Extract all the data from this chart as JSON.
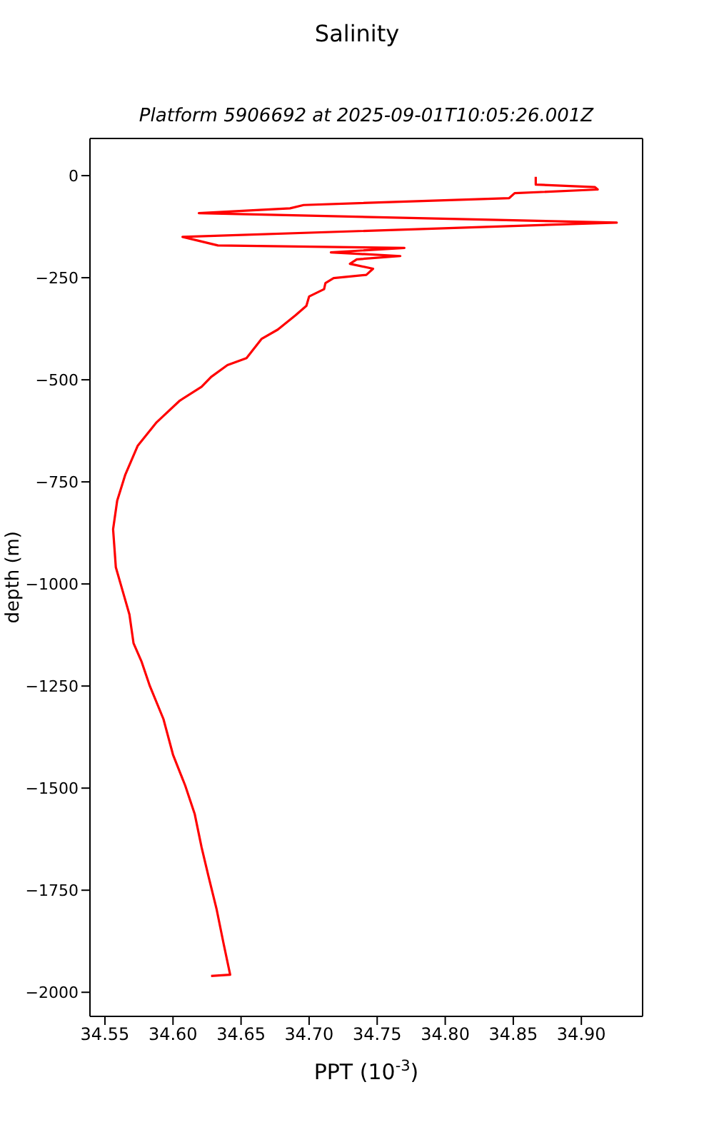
{
  "chart_data": {
    "type": "line",
    "title": "Salinity",
    "subtitle": "Platform 5906692 at 2025-09-01T10:05:26.001Z",
    "xlabel": "PPT (10$^{-3}$)",
    "ylabel": "depth (m)",
    "xlim": [
      34.539,
      34.945
    ],
    "xticks": [
      34.55,
      {
        "value": 34.6,
        "label": "34.60"
      },
      34.65,
      {
        "value": 34.7,
        "label": "34.70"
      },
      34.75,
      {
        "value": 34.8,
        "label": "34.80"
      },
      34.85,
      {
        "value": 34.9,
        "label": "34.90"
      }
    ],
    "ylim": [
      -2059,
      91
    ],
    "yticks": [
      -2000,
      -1750,
      -1500,
      -1250,
      -1000,
      -750,
      -500,
      -250,
      0
    ],
    "legend": false,
    "marker": "none",
    "line_style": "solid",
    "series": [
      {
        "color": "#ff0000",
        "x": [
          34.8665,
          34.8665,
          34.91,
          34.912,
          34.851,
          34.847,
          34.696,
          34.686,
          34.619,
          34.926,
          34.607,
          34.633,
          34.77,
          34.716,
          34.767,
          34.735,
          34.73,
          34.747,
          34.742,
          34.718,
          34.712,
          34.711,
          34.7,
          34.698,
          34.69,
          34.677,
          34.665,
          34.654,
          34.64,
          34.628,
          34.621,
          34.605,
          34.588,
          34.574,
          34.565,
          34.559,
          34.556,
          34.558,
          34.563,
          34.568,
          34.571,
          34.577,
          34.583,
          34.593,
          34.6,
          34.609,
          34.616,
          34.621,
          34.626,
          34.632,
          34.637,
          34.642,
          34.628
        ],
        "values": [
          -3,
          -22,
          -28,
          -34,
          -43,
          -55,
          -72,
          -80,
          -92,
          -115,
          -150,
          -171,
          -177,
          -188,
          -197,
          -205,
          -216,
          -228,
          -243,
          -251,
          -263,
          -278,
          -296,
          -319,
          -342,
          -377,
          -400,
          -447,
          -464,
          -493,
          -517,
          -551,
          -604,
          -662,
          -732,
          -796,
          -866,
          -959,
          -1017,
          -1075,
          -1145,
          -1191,
          -1250,
          -1331,
          -1418,
          -1494,
          -1564,
          -1645,
          -1715,
          -1796,
          -1878,
          -1957,
          -1960
        ]
      }
    ]
  }
}
